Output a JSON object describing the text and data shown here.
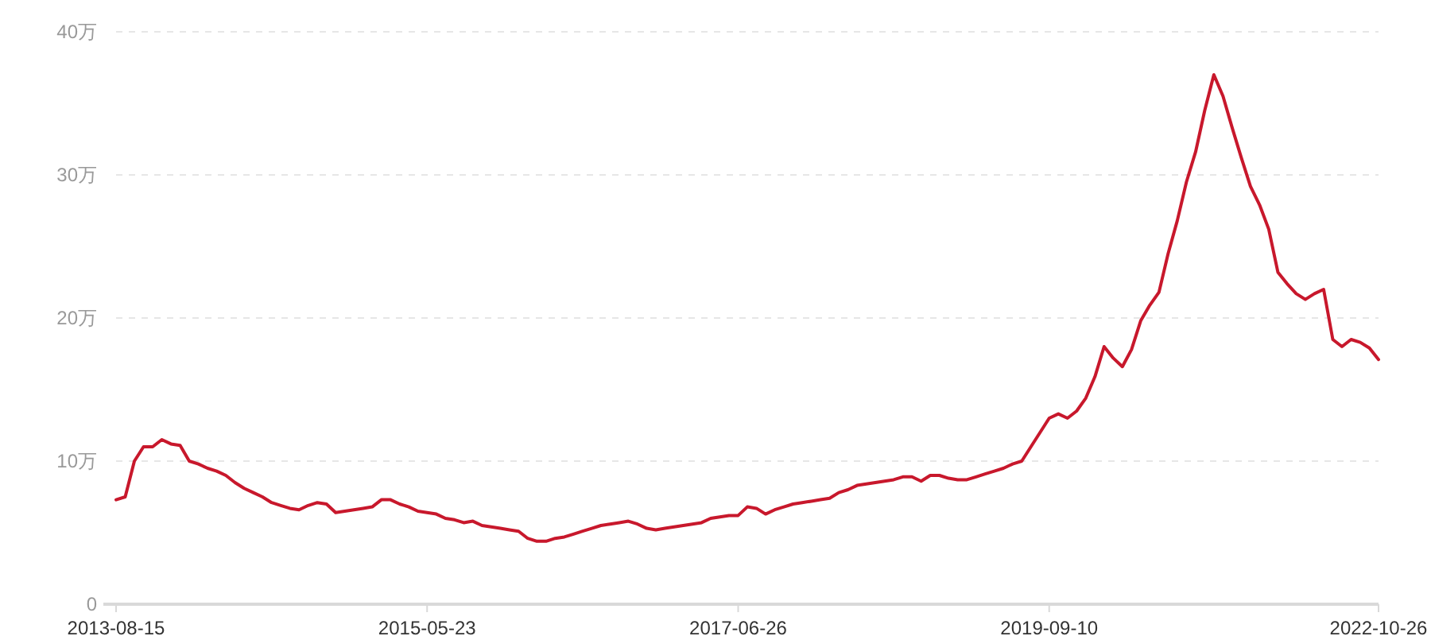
{
  "chart_data": {
    "type": "line",
    "categories": [
      "2013-08-15",
      null,
      null,
      null,
      null,
      null,
      null,
      null,
      null,
      null,
      null,
      null,
      null,
      null,
      null,
      null,
      null,
      null,
      null,
      null,
      null,
      null,
      null,
      null,
      null,
      null,
      null,
      null,
      null,
      null,
      null,
      null,
      null,
      null,
      "2015-05-23",
      null,
      null,
      null,
      null,
      null,
      null,
      null,
      null,
      null,
      null,
      null,
      null,
      null,
      null,
      null,
      null,
      null,
      null,
      null,
      null,
      null,
      null,
      null,
      null,
      null,
      null,
      null,
      null,
      null,
      null,
      null,
      null,
      null,
      "2017-06-26",
      null,
      null,
      null,
      null,
      null,
      null,
      null,
      null,
      null,
      null,
      null,
      null,
      null,
      null,
      null,
      null,
      null,
      null,
      null,
      null,
      null,
      null,
      null,
      null,
      null,
      null,
      null,
      null,
      null,
      null,
      null,
      null,
      null,
      "2019-09-10",
      null,
      null,
      null,
      null,
      null,
      null,
      null,
      null,
      null,
      null,
      null,
      null,
      null,
      null,
      null,
      null,
      null,
      null,
      null,
      null,
      null,
      null,
      null,
      null,
      null,
      null,
      null,
      null,
      null,
      null,
      null,
      null,
      null,
      null,
      null,
      "2022-10-26"
    ],
    "series": [
      {
        "color": "#c8182c",
        "values": [
          7.3,
          7.5,
          10.0,
          11.0,
          11.0,
          11.5,
          11.2,
          11.1,
          10.0,
          9.8,
          9.5,
          9.3,
          9.0,
          8.5,
          8.1,
          7.8,
          7.5,
          7.1,
          6.9,
          6.7,
          6.6,
          6.9,
          7.1,
          7.0,
          6.4,
          6.5,
          6.6,
          6.7,
          6.8,
          7.3,
          7.3,
          7.0,
          6.8,
          6.5,
          6.4,
          6.3,
          6.0,
          5.9,
          5.7,
          5.8,
          5.5,
          5.4,
          5.3,
          5.2,
          5.1,
          4.6,
          4.4,
          4.4,
          4.6,
          4.7,
          4.9,
          5.1,
          5.3,
          5.5,
          5.6,
          5.7,
          5.8,
          5.6,
          5.3,
          5.2,
          5.3,
          5.4,
          5.5,
          5.6,
          5.7,
          6.0,
          6.1,
          6.2,
          6.2,
          6.8,
          6.7,
          6.3,
          6.6,
          6.8,
          7.0,
          7.1,
          7.2,
          7.3,
          7.4,
          7.8,
          8.0,
          8.3,
          8.4,
          8.5,
          8.6,
          8.7,
          8.9,
          8.9,
          8.6,
          9.0,
          9.0,
          8.8,
          8.7,
          8.7,
          8.9,
          9.1,
          9.3,
          9.5,
          9.8,
          10.0,
          11.0,
          12.0,
          13.0,
          13.3,
          13.0,
          13.5,
          14.4,
          15.9,
          18.0,
          17.2,
          16.6,
          17.8,
          19.8,
          20.9,
          21.8,
          24.5,
          26.8,
          29.5,
          31.6,
          34.5,
          37.0,
          35.5,
          33.3,
          31.2,
          29.2,
          27.9,
          26.2,
          23.2,
          22.4,
          21.7,
          21.3,
          21.7,
          22.0,
          18.5,
          18.0,
          18.5,
          18.3,
          17.9,
          17.1
        ]
      }
    ],
    "ylim": [
      0,
      40
    ],
    "yticks": [
      0,
      {
        "value": 10,
        "label": "10万"
      },
      {
        "value": 20,
        "label": "20万"
      },
      {
        "value": 30,
        "label": "30万"
      },
      {
        "value": 40,
        "label": "40万"
      }
    ],
    "grid": "y"
  }
}
